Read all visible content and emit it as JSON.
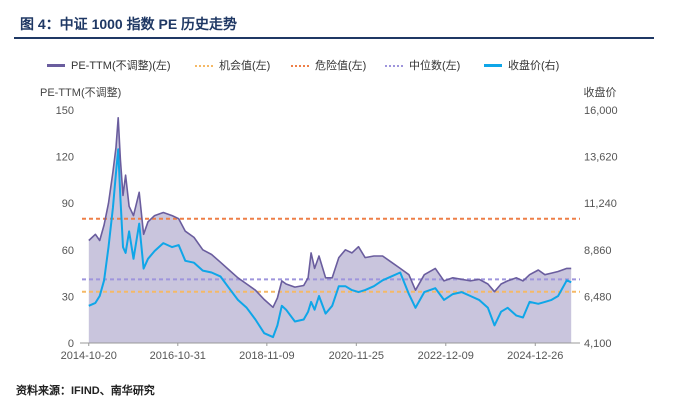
{
  "figure": {
    "title": "图 4：中证 1000 指数 PE 历史走势",
    "source": "资料来源：IFIND、南华研究"
  },
  "colors": {
    "title": "#1f3864",
    "pe_line": "#6a5d9e",
    "pe_fill": "#c9c5dd",
    "opportunity": "#f5b966",
    "danger": "#ee7f47",
    "median": "#9e95dc",
    "price": "#0fa6e8"
  },
  "chart_data": {
    "type": "line",
    "title": "中证 1000 指数 PE 历史走势",
    "ylabel_left": "PE-TTM(不调整)",
    "ylabel_right": "收盘价",
    "x_tick_labels": [
      "2014-10-20",
      "2016-10-31",
      "2018-11-09",
      "2020-11-25",
      "2022-12-09",
      "2024-12-26"
    ],
    "x_range": [
      2014.6,
      2026.0
    ],
    "x_ticks": [
      2014.8,
      2016.83,
      2018.86,
      2020.9,
      2022.94,
      2024.98
    ],
    "ylim_left": [
      0,
      150
    ],
    "yticks_left": [
      0,
      30,
      60,
      90,
      120,
      150
    ],
    "ylim_right": [
      4100,
      16000
    ],
    "yticks_right": [
      "4,100",
      "6,480",
      "8,860",
      "11,240",
      "13,620",
      "16,000"
    ],
    "legend": [
      "PE-TTM(不调整)(左)",
      "机会值(左)",
      "危险值(左)",
      "中位数(左)",
      "收盘价(右)"
    ],
    "reference_lines": {
      "机会值(左)": 33,
      "危险值(左)": 80,
      "中位数(左)": 41
    },
    "series": [
      {
        "name": "PE-TTM(不调整)(左)",
        "axis": "left",
        "style": "area",
        "points": [
          [
            2014.8,
            66
          ],
          [
            2014.95,
            70
          ],
          [
            2015.05,
            66
          ],
          [
            2015.15,
            76
          ],
          [
            2015.25,
            90
          ],
          [
            2015.35,
            110
          ],
          [
            2015.42,
            126
          ],
          [
            2015.47,
            145
          ],
          [
            2015.52,
            118
          ],
          [
            2015.58,
            95
          ],
          [
            2015.64,
            108
          ],
          [
            2015.72,
            88
          ],
          [
            2015.82,
            82
          ],
          [
            2015.95,
            97
          ],
          [
            2016.05,
            70
          ],
          [
            2016.15,
            78
          ],
          [
            2016.3,
            82
          ],
          [
            2016.5,
            84
          ],
          [
            2016.7,
            82
          ],
          [
            2016.85,
            80
          ],
          [
            2017.0,
            72
          ],
          [
            2017.2,
            68
          ],
          [
            2017.4,
            60
          ],
          [
            2017.6,
            57
          ],
          [
            2017.8,
            52
          ],
          [
            2018.0,
            47
          ],
          [
            2018.2,
            42
          ],
          [
            2018.4,
            38
          ],
          [
            2018.6,
            34
          ],
          [
            2018.8,
            28
          ],
          [
            2019.0,
            23
          ],
          [
            2019.1,
            29
          ],
          [
            2019.2,
            40
          ],
          [
            2019.3,
            38
          ],
          [
            2019.5,
            36
          ],
          [
            2019.7,
            37
          ],
          [
            2019.8,
            42
          ],
          [
            2019.87,
            58
          ],
          [
            2019.95,
            48
          ],
          [
            2020.05,
            56
          ],
          [
            2020.2,
            42
          ],
          [
            2020.35,
            42
          ],
          [
            2020.5,
            55
          ],
          [
            2020.65,
            60
          ],
          [
            2020.8,
            58
          ],
          [
            2020.95,
            62
          ],
          [
            2021.1,
            55
          ],
          [
            2021.3,
            56
          ],
          [
            2021.5,
            56
          ],
          [
            2021.7,
            52
          ],
          [
            2021.9,
            48
          ],
          [
            2022.1,
            44
          ],
          [
            2022.25,
            34
          ],
          [
            2022.45,
            44
          ],
          [
            2022.7,
            48
          ],
          [
            2022.9,
            40
          ],
          [
            2023.1,
            42
          ],
          [
            2023.3,
            41
          ],
          [
            2023.5,
            40
          ],
          [
            2023.7,
            41
          ],
          [
            2023.9,
            38
          ],
          [
            2024.05,
            33
          ],
          [
            2024.2,
            38
          ],
          [
            2024.35,
            40
          ],
          [
            2024.55,
            42
          ],
          [
            2024.7,
            40
          ],
          [
            2024.85,
            44
          ],
          [
            2025.05,
            47
          ],
          [
            2025.2,
            44
          ],
          [
            2025.35,
            45
          ],
          [
            2025.5,
            46
          ],
          [
            2025.7,
            48
          ],
          [
            2025.8,
            48
          ]
        ]
      },
      {
        "name": "收盘价(右)",
        "axis": "right",
        "style": "line",
        "points": [
          [
            2014.8,
            6000
          ],
          [
            2014.95,
            6150
          ],
          [
            2015.05,
            6500
          ],
          [
            2015.15,
            7300
          ],
          [
            2015.25,
            9000
          ],
          [
            2015.35,
            11000
          ],
          [
            2015.42,
            12800
          ],
          [
            2015.47,
            14000
          ],
          [
            2015.52,
            11500
          ],
          [
            2015.58,
            9000
          ],
          [
            2015.64,
            8700
          ],
          [
            2015.72,
            9800
          ],
          [
            2015.82,
            8400
          ],
          [
            2015.95,
            10200
          ],
          [
            2016.05,
            7900
          ],
          [
            2016.15,
            8400
          ],
          [
            2016.3,
            8800
          ],
          [
            2016.5,
            9200
          ],
          [
            2016.7,
            9000
          ],
          [
            2016.85,
            9100
          ],
          [
            2017.0,
            8300
          ],
          [
            2017.2,
            8200
          ],
          [
            2017.4,
            7800
          ],
          [
            2017.6,
            7700
          ],
          [
            2017.8,
            7500
          ],
          [
            2018.0,
            6900
          ],
          [
            2018.2,
            6300
          ],
          [
            2018.4,
            5900
          ],
          [
            2018.6,
            5300
          ],
          [
            2018.8,
            4600
          ],
          [
            2019.0,
            4400
          ],
          [
            2019.1,
            5000
          ],
          [
            2019.2,
            6000
          ],
          [
            2019.3,
            5800
          ],
          [
            2019.5,
            5200
          ],
          [
            2019.7,
            5300
          ],
          [
            2019.8,
            5700
          ],
          [
            2019.87,
            6200
          ],
          [
            2019.95,
            5800
          ],
          [
            2020.05,
            6500
          ],
          [
            2020.2,
            5600
          ],
          [
            2020.35,
            6000
          ],
          [
            2020.5,
            7000
          ],
          [
            2020.65,
            7000
          ],
          [
            2020.8,
            6800
          ],
          [
            2020.95,
            6700
          ],
          [
            2021.1,
            6800
          ],
          [
            2021.3,
            7000
          ],
          [
            2021.5,
            7300
          ],
          [
            2021.7,
            7500
          ],
          [
            2021.9,
            7700
          ],
          [
            2022.1,
            6600
          ],
          [
            2022.25,
            5900
          ],
          [
            2022.45,
            6700
          ],
          [
            2022.7,
            6900
          ],
          [
            2022.9,
            6300
          ],
          [
            2023.1,
            6600
          ],
          [
            2023.3,
            6700
          ],
          [
            2023.5,
            6500
          ],
          [
            2023.7,
            6300
          ],
          [
            2023.9,
            5900
          ],
          [
            2024.05,
            5000
          ],
          [
            2024.2,
            5700
          ],
          [
            2024.35,
            5900
          ],
          [
            2024.55,
            5500
          ],
          [
            2024.7,
            5400
          ],
          [
            2024.85,
            6200
          ],
          [
            2025.05,
            6100
          ],
          [
            2025.2,
            6200
          ],
          [
            2025.35,
            6300
          ],
          [
            2025.5,
            6500
          ],
          [
            2025.7,
            7300
          ],
          [
            2025.8,
            7200
          ]
        ]
      }
    ]
  }
}
